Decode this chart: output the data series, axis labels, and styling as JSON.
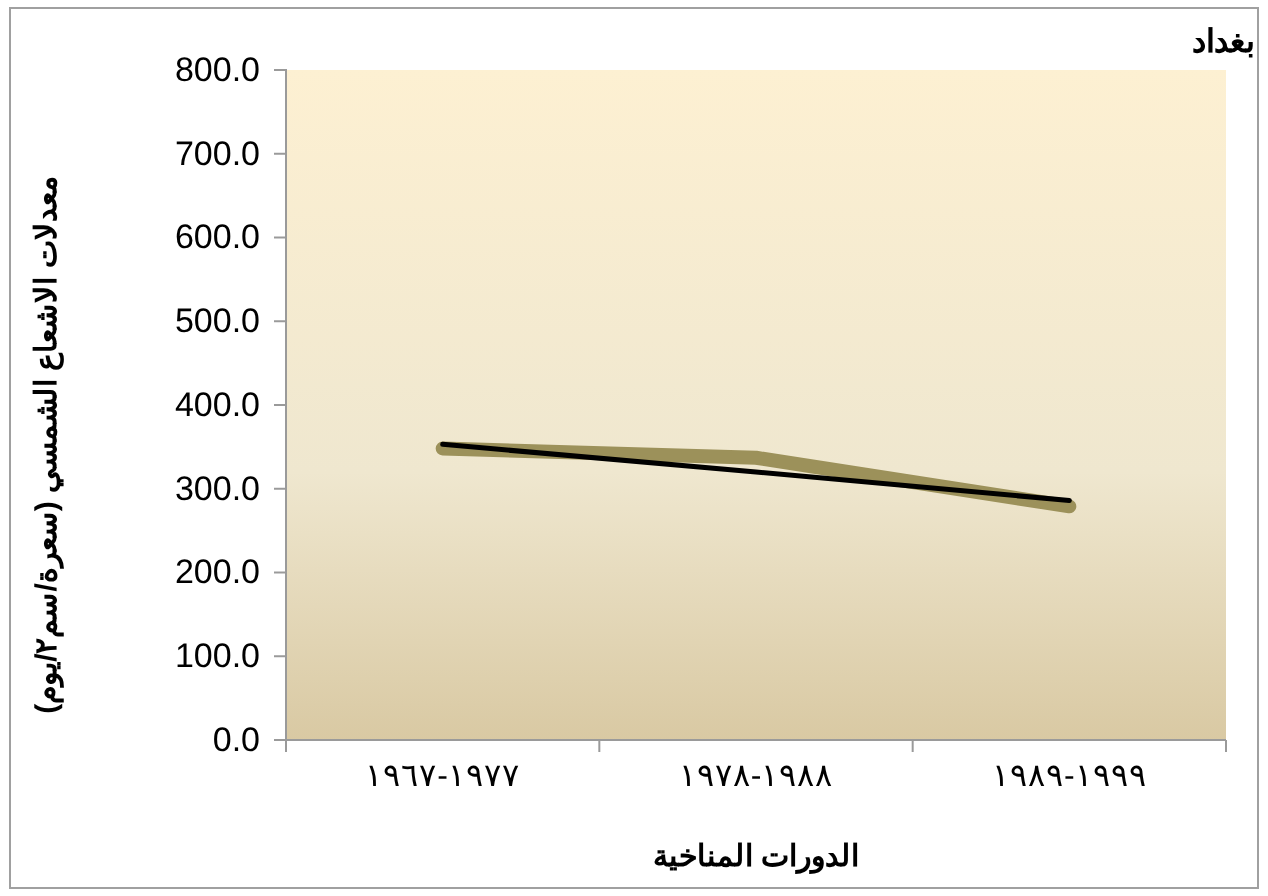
{
  "chart_data": {
    "type": "line",
    "title": "بغداد",
    "xlabel": "الدورات المناخية",
    "ylabel": "معدلات الاشعاع الشمسي (سعرة/سم٢/يوم)",
    "categories": [
      "١٩٦٧-١٩٧٧",
      "١٩٧٨-١٩٨٨",
      "١٩٨٩-١٩٩٩"
    ],
    "series": [
      {
        "color": "#9c915a",
        "values": [
          348,
          337,
          279
        ]
      },
      {
        "type": "line",
        "color": "#000000",
        "values": [
          353,
          320,
          286
        ]
      }
    ],
    "ylim": [
      0,
      800
    ],
    "yticks": [
      {
        "value": 0,
        "label": "0.0"
      },
      {
        "value": 100,
        "label": "100.0"
      },
      {
        "value": 200,
        "label": "200.0"
      },
      {
        "value": 300,
        "label": "300.0"
      },
      {
        "value": 400,
        "label": "400.0"
      },
      {
        "value": 500,
        "label": "500.0"
      },
      {
        "value": 600,
        "label": "600.0"
      },
      {
        "value": 700,
        "label": "700.0"
      },
      {
        "value": 800,
        "label": "800.0"
      }
    ],
    "grid": false
  }
}
